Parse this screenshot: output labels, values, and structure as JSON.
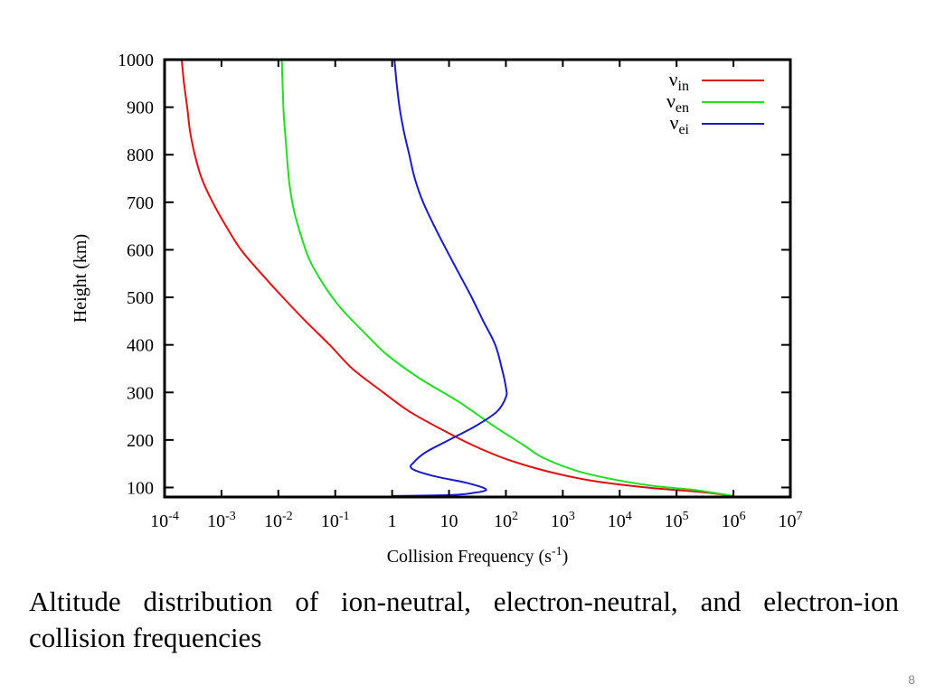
{
  "slide": {
    "caption": "Altitude distribution of ion-neutral, electron-neutral, and electron-ion collision frequencies",
    "page_number": "8"
  },
  "chart_data": {
    "type": "line",
    "ylabel": "Height (km)",
    "xlabel": {
      "text": "Collision Frequency (s",
      "sup": "-1",
      "close": ")"
    },
    "x_scale": "log",
    "xlim": [
      0.0001,
      10000000
    ],
    "ylim": [
      80,
      1000
    ],
    "grid": false,
    "legend_position": "top-right",
    "x_ticks": [
      {
        "value": 0.0001,
        "base": "10",
        "exp": "-4"
      },
      {
        "value": 0.001,
        "base": "10",
        "exp": "-3"
      },
      {
        "value": 0.01,
        "base": "10",
        "exp": "-2"
      },
      {
        "value": 0.1,
        "base": "10",
        "exp": "-1"
      },
      {
        "value": 1,
        "base": "1",
        "exp": ""
      },
      {
        "value": 10,
        "base": "10",
        "exp": ""
      },
      {
        "value": 100,
        "base": "10",
        "exp": "2"
      },
      {
        "value": 1000,
        "base": "10",
        "exp": "3"
      },
      {
        "value": 10000,
        "base": "10",
        "exp": "4"
      },
      {
        "value": 100000,
        "base": "10",
        "exp": "5"
      },
      {
        "value": 1000000,
        "base": "10",
        "exp": "6"
      },
      {
        "value": 10000000,
        "base": "10",
        "exp": "7"
      }
    ],
    "y_ticks": [
      100,
      200,
      300,
      400,
      500,
      600,
      700,
      800,
      900,
      1000
    ],
    "series": [
      {
        "name": "ν",
        "sub": "in",
        "color": "#dd1111",
        "points": [
          [
            1000000,
            82
          ],
          [
            300000,
            90
          ],
          [
            30000,
            100
          ],
          [
            3000,
            115
          ],
          [
            500,
            135
          ],
          [
            100,
            160
          ],
          [
            25,
            190
          ],
          [
            8,
            220
          ],
          [
            2,
            260
          ],
          [
            0.7,
            300
          ],
          [
            0.2,
            350
          ],
          [
            0.08,
            400
          ],
          [
            0.03,
            450
          ],
          [
            0.012,
            500
          ],
          [
            0.005,
            550
          ],
          [
            0.0022,
            600
          ],
          [
            0.0012,
            650
          ],
          [
            0.0007,
            700
          ],
          [
            0.00045,
            750
          ],
          [
            0.00034,
            800
          ],
          [
            0.00028,
            850
          ],
          [
            0.00025,
            900
          ],
          [
            0.00022,
            950
          ],
          [
            0.0002,
            1000
          ]
        ]
      },
      {
        "name": "ν",
        "sub": "en",
        "color": "#22dd22",
        "points": [
          [
            1000000,
            82
          ],
          [
            200000,
            95
          ],
          [
            30000,
            105
          ],
          [
            2500,
            130
          ],
          [
            500,
            160
          ],
          [
            200,
            190
          ],
          [
            60,
            230
          ],
          [
            15,
            280
          ],
          [
            3,
            330
          ],
          [
            0.8,
            380
          ],
          [
            0.3,
            430
          ],
          [
            0.12,
            480
          ],
          [
            0.06,
            530
          ],
          [
            0.035,
            580
          ],
          [
            0.025,
            630
          ],
          [
            0.019,
            680
          ],
          [
            0.016,
            730
          ],
          [
            0.0145,
            780
          ],
          [
            0.0135,
            830
          ],
          [
            0.0125,
            880
          ],
          [
            0.012,
            930
          ],
          [
            0.0115,
            1000
          ]
        ]
      },
      {
        "name": "ν",
        "sub": "ei",
        "color": "#1a1acc",
        "points": [
          [
            1,
            82
          ],
          [
            10,
            84
          ],
          [
            25,
            88
          ],
          [
            45,
            96
          ],
          [
            20,
            110
          ],
          [
            5,
            125
          ],
          [
            2.2,
            140
          ],
          [
            2.5,
            155
          ],
          [
            4,
            175
          ],
          [
            10,
            200
          ],
          [
            30,
            230
          ],
          [
            70,
            260
          ],
          [
            100,
            290
          ],
          [
            100,
            310
          ],
          [
            85,
            350
          ],
          [
            65,
            400
          ],
          [
            40,
            450
          ],
          [
            25,
            500
          ],
          [
            15,
            550
          ],
          [
            9,
            600
          ],
          [
            5.5,
            650
          ],
          [
            3.5,
            700
          ],
          [
            2.5,
            750
          ],
          [
            2,
            800
          ],
          [
            1.6,
            850
          ],
          [
            1.35,
            900
          ],
          [
            1.2,
            950
          ],
          [
            1.1,
            1000
          ]
        ]
      }
    ]
  }
}
